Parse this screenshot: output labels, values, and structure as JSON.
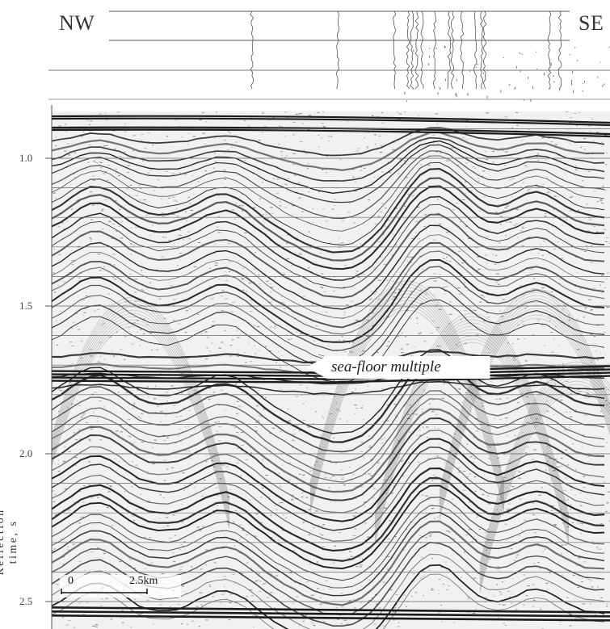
{
  "figure": {
    "left_label": "NW",
    "right_label": "SE",
    "y_axis": {
      "title": "Reflection time, s",
      "ticks": [
        "1.0",
        "1.5",
        "2.0",
        "2.5"
      ],
      "range": [
        0.85,
        2.55
      ],
      "unit": "s"
    },
    "annotation": "sea-floor multiple",
    "scale_bar": {
      "start": "0",
      "end": "2.5km"
    },
    "colors": {
      "ink": "#1c1c1c",
      "background": "#ffffff",
      "noise": "#8a8a8a"
    }
  }
}
